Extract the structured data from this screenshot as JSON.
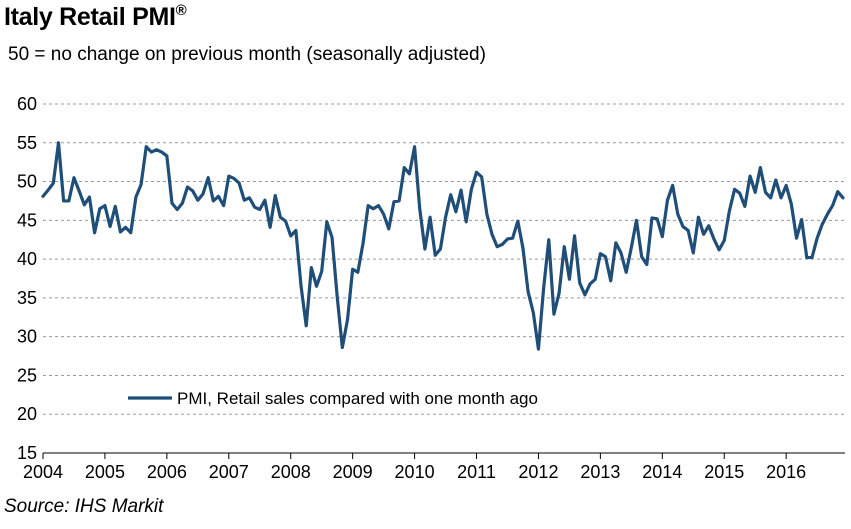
{
  "header": {
    "title": "Italy Retail PMI",
    "title_mark": "®",
    "subtitle": "50 = no change on previous month  (seasonally adjusted)"
  },
  "footer": {
    "source": "Source: IHS Markit"
  },
  "chart_data": {
    "type": "line",
    "title": "Italy Retail PMI",
    "ylim": [
      15,
      60
    ],
    "yticks": [
      15,
      20,
      25,
      30,
      35,
      40,
      45,
      50,
      55,
      60
    ],
    "xlim": [
      2004.0,
      2016.95
    ],
    "xticks": [
      2004,
      2005,
      2006,
      2007,
      2008,
      2009,
      2010,
      2011,
      2012,
      2013,
      2014,
      2015,
      2016
    ],
    "grid": true,
    "legend_position": "bottom-left",
    "series": [
      {
        "name": "PMI, Retail sales compared with one month ago",
        "color": "#1F4E79",
        "x": [
          2004.0,
          2004.083,
          2004.167,
          2004.25,
          2004.333,
          2004.417,
          2004.5,
          2004.583,
          2004.667,
          2004.75,
          2004.833,
          2004.917,
          2005.0,
          2005.083,
          2005.167,
          2005.25,
          2005.333,
          2005.417,
          2005.5,
          2005.583,
          2005.667,
          2005.75,
          2005.833,
          2005.917,
          2006.0,
          2006.083,
          2006.167,
          2006.25,
          2006.333,
          2006.417,
          2006.5,
          2006.583,
          2006.667,
          2006.75,
          2006.833,
          2006.917,
          2007.0,
          2007.083,
          2007.167,
          2007.25,
          2007.333,
          2007.417,
          2007.5,
          2007.583,
          2007.667,
          2007.75,
          2007.833,
          2007.917,
          2008.0,
          2008.083,
          2008.167,
          2008.25,
          2008.333,
          2008.417,
          2008.5,
          2008.583,
          2008.667,
          2008.75,
          2008.833,
          2008.917,
          2009.0,
          2009.083,
          2009.167,
          2009.25,
          2009.333,
          2009.417,
          2009.5,
          2009.583,
          2009.667,
          2009.75,
          2009.833,
          2009.917,
          2010.0,
          2010.083,
          2010.167,
          2010.25,
          2010.333,
          2010.417,
          2010.5,
          2010.583,
          2010.667,
          2010.75,
          2010.833,
          2010.917,
          2011.0,
          2011.083,
          2011.167,
          2011.25,
          2011.333,
          2011.417,
          2011.5,
          2011.583,
          2011.667,
          2011.75,
          2011.833,
          2011.917,
          2012.0,
          2012.083,
          2012.167,
          2012.25,
          2012.333,
          2012.417,
          2012.5,
          2012.583,
          2012.667,
          2012.75,
          2012.833,
          2012.917,
          2013.0,
          2013.083,
          2013.167,
          2013.25,
          2013.333,
          2013.417,
          2013.5,
          2013.583,
          2013.667,
          2013.75,
          2013.833,
          2013.917,
          2014.0,
          2014.083,
          2014.167,
          2014.25,
          2014.333,
          2014.417,
          2014.5,
          2014.583,
          2014.667,
          2014.75,
          2014.833,
          2014.917,
          2015.0,
          2015.083,
          2015.167,
          2015.25,
          2015.333,
          2015.417,
          2015.5,
          2015.583,
          2015.667,
          2015.75,
          2015.833,
          2015.917,
          2016.0,
          2016.083,
          2016.167,
          2016.25,
          2016.333,
          2016.417,
          2016.5,
          2016.583,
          2016.667,
          2016.75,
          2016.833,
          2016.917
        ],
        "y": [
          48.1,
          48.9,
          49.8,
          55.0,
          47.5,
          47.5,
          50.5,
          48.8,
          47.0,
          48.0,
          43.4,
          46.5,
          46.9,
          44.2,
          46.8,
          43.5,
          44.1,
          43.4,
          48.0,
          49.6,
          54.5,
          53.8,
          54.1,
          53.8,
          53.3,
          47.2,
          46.4,
          47.2,
          49.3,
          48.8,
          47.6,
          48.4,
          50.5,
          47.5,
          48.1,
          46.9,
          50.7,
          50.4,
          49.8,
          47.6,
          47.9,
          46.7,
          46.4,
          47.6,
          44.1,
          48.2,
          45.4,
          44.9,
          43.0,
          43.7,
          36.5,
          31.4,
          38.9,
          36.5,
          38.4,
          44.8,
          42.8,
          35.2,
          28.6,
          32.2,
          38.7,
          38.3,
          42.0,
          46.9,
          46.5,
          46.9,
          45.8,
          43.9,
          47.4,
          47.5,
          51.8,
          51.0,
          54.5,
          46.5,
          41.3,
          45.4,
          40.5,
          41.3,
          45.4,
          48.3,
          46.1,
          48.9,
          44.8,
          49.0,
          51.2,
          50.6,
          45.8,
          43.2,
          41.6,
          41.9,
          42.6,
          42.7,
          44.9,
          41.4,
          35.8,
          33.1,
          28.4,
          36.2,
          42.5,
          32.9,
          35.6,
          41.6,
          37.4,
          43.0,
          36.9,
          35.4,
          36.8,
          37.4,
          40.7,
          40.3,
          37.2,
          42.1,
          40.8,
          38.3,
          41.5,
          45.0,
          40.3,
          39.3,
          45.3,
          45.2,
          42.9,
          47.6,
          49.5,
          45.8,
          44.2,
          43.7,
          40.8,
          45.4,
          43.2,
          44.3,
          42.6,
          41.2,
          42.4,
          46.2,
          49.0,
          48.5,
          46.8,
          50.7,
          48.6,
          51.8,
          48.6,
          47.9,
          50.2,
          47.9,
          49.5,
          47.1,
          42.7,
          45.1,
          40.2,
          40.2,
          42.7,
          44.5,
          45.8,
          46.9,
          48.7,
          47.9
        ]
      }
    ]
  }
}
